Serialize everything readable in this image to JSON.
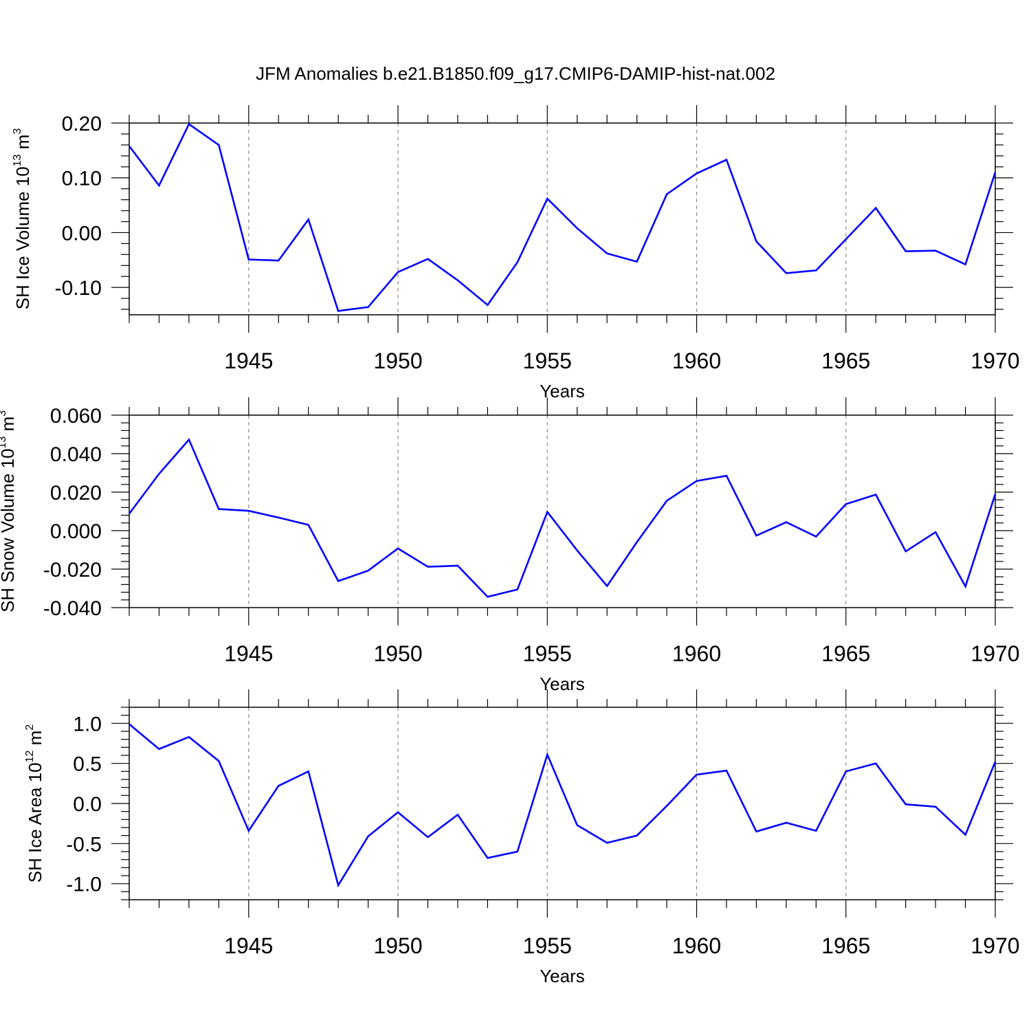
{
  "title": "JFM Anomalies b.e21.B1850.f09_g17.CMIP6-DAMIP-hist-nat.002",
  "chart_data": [
    {
      "type": "line",
      "ylabel": "SH Ice Volume 10",
      "ylabel_exp": "13",
      "ylabel_unit": " m",
      "ylabel_unit_exp": "3",
      "xlabel": "Years",
      "xlim": [
        1941,
        1970
      ],
      "ylim": [
        -0.15,
        0.2
      ],
      "yticks": [
        -0.1,
        0.0,
        0.1,
        0.2
      ],
      "ytick_labels": [
        "-0.10",
        "0.00",
        "0.10",
        "0.20"
      ],
      "xticks": [
        1945,
        1950,
        1955,
        1960,
        1965,
        1970
      ],
      "xtick_labels": [
        "1945",
        "1950",
        "1955",
        "1960",
        "1965",
        "1970"
      ],
      "grid": "vertical dashed at major x ticks",
      "line_color": "#0000ff",
      "x": [
        1941,
        1942,
        1943,
        1944,
        1945,
        1946,
        1947,
        1948,
        1949,
        1950,
        1951,
        1952,
        1953,
        1954,
        1955,
        1956,
        1957,
        1958,
        1959,
        1960,
        1961,
        1962,
        1963,
        1964,
        1965,
        1966,
        1967,
        1968,
        1969,
        1970
      ],
      "values": [
        0.158,
        0.086,
        0.198,
        0.16,
        -0.049,
        -0.051,
        0.024,
        -0.143,
        -0.136,
        -0.072,
        -0.048,
        -0.087,
        -0.132,
        -0.054,
        0.062,
        0.008,
        -0.038,
        -0.053,
        0.07,
        0.108,
        0.133,
        -0.016,
        -0.074,
        -0.069,
        -0.012,
        0.045,
        -0.034,
        -0.033,
        -0.058,
        0.11
      ]
    },
    {
      "type": "line",
      "ylabel": "SH Snow Volume 10",
      "ylabel_exp": "13",
      "ylabel_unit": " m",
      "ylabel_unit_exp": "3",
      "xlabel": "Years",
      "xlim": [
        1941,
        1970
      ],
      "ylim": [
        -0.04,
        0.06
      ],
      "yticks": [
        -0.04,
        -0.02,
        0.0,
        0.02,
        0.04,
        0.06
      ],
      "ytick_labels": [
        "-0.040",
        "-0.020",
        "0.000",
        "0.020",
        "0.040",
        "0.060"
      ],
      "xticks": [
        1945,
        1950,
        1955,
        1960,
        1965,
        1970
      ],
      "xtick_labels": [
        "1945",
        "1950",
        "1955",
        "1960",
        "1965",
        "1970"
      ],
      "grid": "vertical dashed at major x ticks",
      "line_color": "#0000ff",
      "x": [
        1941,
        1942,
        1943,
        1944,
        1945,
        1946,
        1947,
        1948,
        1949,
        1950,
        1951,
        1952,
        1953,
        1954,
        1955,
        1956,
        1957,
        1958,
        1959,
        1960,
        1961,
        1962,
        1963,
        1964,
        1965,
        1966,
        1967,
        1968,
        1969,
        1970
      ],
      "values": [
        0.0088,
        0.0295,
        0.0473,
        0.0112,
        0.0103,
        0.0068,
        0.003,
        -0.0262,
        -0.0208,
        -0.0093,
        -0.0188,
        -0.0182,
        -0.0344,
        -0.0306,
        0.0097,
        -0.0103,
        -0.0288,
        -0.006,
        0.0155,
        0.0258,
        0.0285,
        -0.0026,
        0.0044,
        -0.0031,
        0.0138,
        0.0187,
        -0.0108,
        -0.0008,
        -0.029,
        0.019
      ]
    },
    {
      "type": "line",
      "ylabel": "SH Ice Area 10",
      "ylabel_exp": "12",
      "ylabel_unit": " m",
      "ylabel_unit_exp": "2",
      "xlabel": "Years",
      "xlim": [
        1941,
        1970
      ],
      "ylim": [
        -1.2,
        1.2
      ],
      "yticks": [
        -1.0,
        -0.5,
        0.0,
        0.5,
        1.0
      ],
      "ytick_labels": [
        "-1.0",
        "-0.5",
        "0.0",
        "0.5",
        "1.0"
      ],
      "xticks": [
        1945,
        1950,
        1955,
        1960,
        1965,
        1970
      ],
      "xtick_labels": [
        "1945",
        "1950",
        "1955",
        "1960",
        "1965",
        "1970"
      ],
      "grid": "vertical dashed at major x ticks",
      "line_color": "#0000ff",
      "x": [
        1941,
        1942,
        1943,
        1944,
        1945,
        1946,
        1947,
        1948,
        1949,
        1950,
        1951,
        1952,
        1953,
        1954,
        1955,
        1956,
        1957,
        1958,
        1959,
        1960,
        1961,
        1962,
        1963,
        1964,
        1965,
        1966,
        1967,
        1968,
        1969,
        1970
      ],
      "values": [
        0.99,
        0.68,
        0.83,
        0.53,
        -0.34,
        0.22,
        0.4,
        -1.02,
        -0.41,
        -0.11,
        -0.42,
        -0.14,
        -0.68,
        -0.6,
        0.61,
        -0.27,
        -0.49,
        -0.4,
        -0.03,
        0.36,
        0.41,
        -0.35,
        -0.24,
        -0.34,
        0.4,
        0.5,
        -0.01,
        -0.04,
        -0.39,
        0.52
      ]
    }
  ]
}
